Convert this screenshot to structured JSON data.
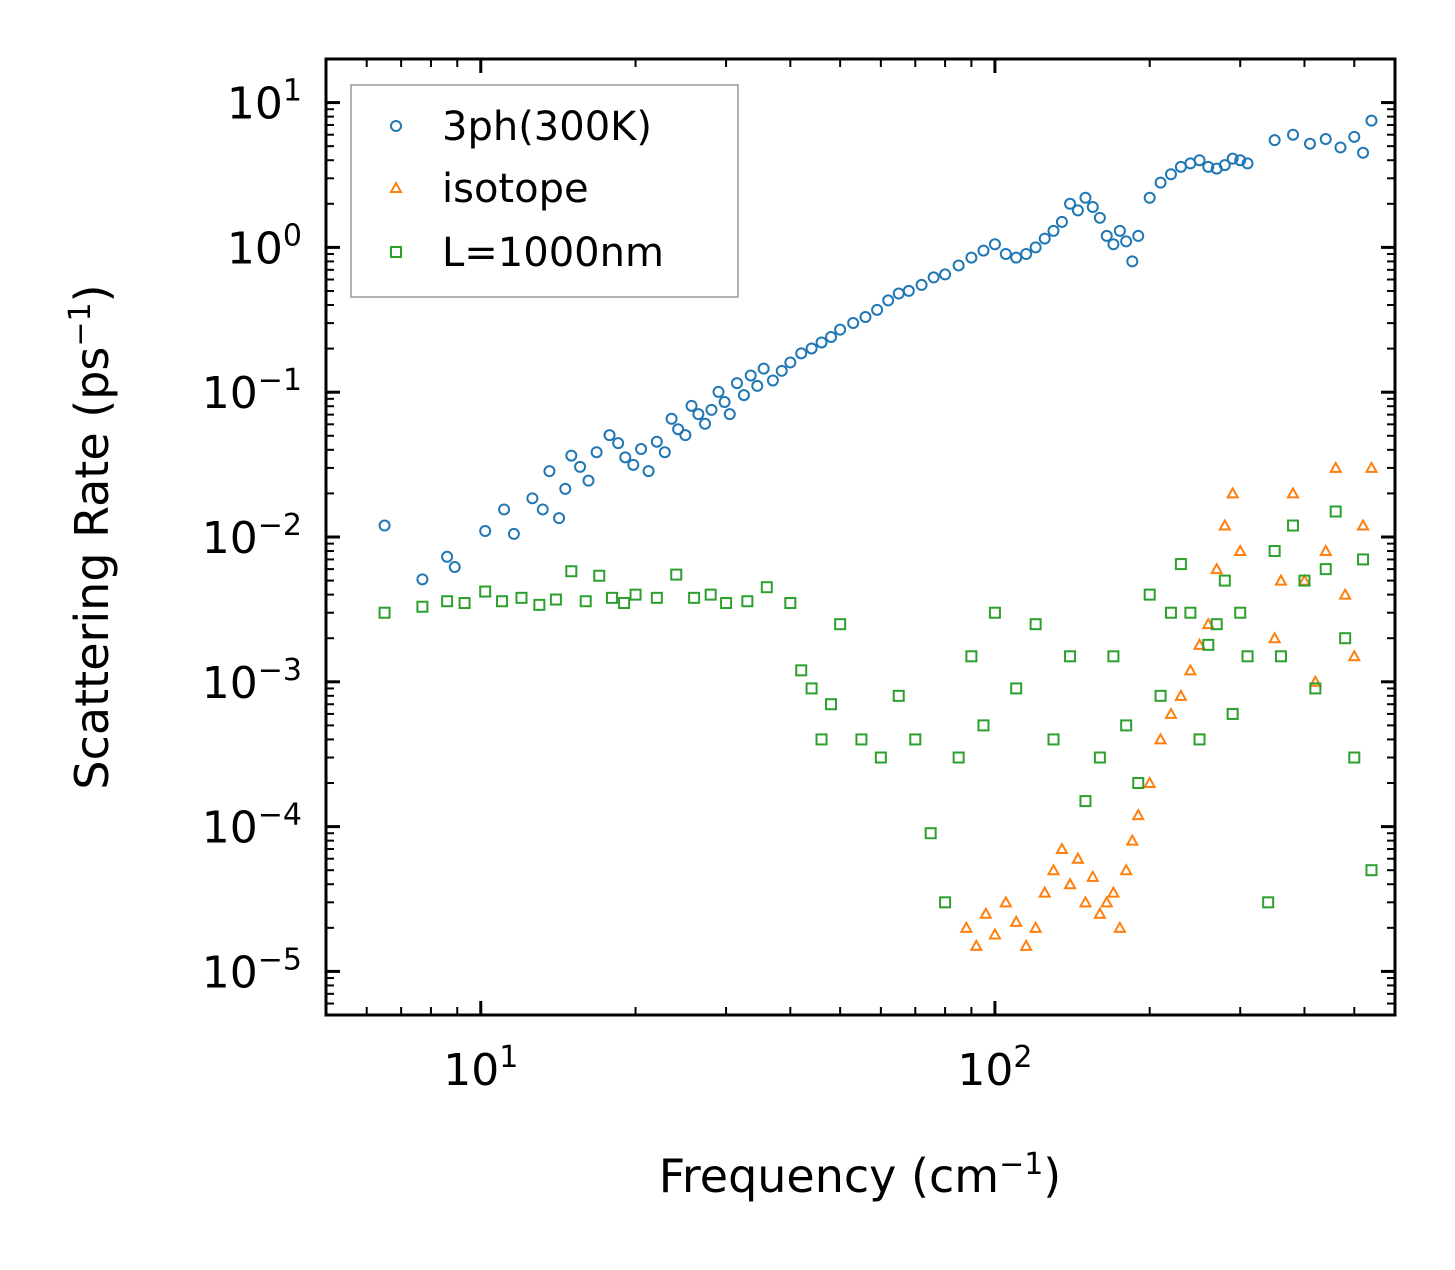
{
  "chart_data": {
    "type": "scatter",
    "xscale": "log",
    "yscale": "log",
    "xlim": [
      5,
      600
    ],
    "ylim": [
      5e-06,
      20
    ],
    "xlabel": {
      "text": "Frequency (cm",
      "sup": "−1",
      "close": ")"
    },
    "ylabel": {
      "text": "Scattering Rate (ps",
      "sup": "−1",
      "close": ")"
    },
    "x_ticks": [
      {
        "value": 10,
        "base": "10",
        "exp": "1"
      },
      {
        "value": 100,
        "base": "10",
        "exp": "2"
      }
    ],
    "y_ticks": [
      {
        "value": 10,
        "base": "10",
        "exp": "1"
      },
      {
        "value": 1,
        "base": "10",
        "exp": "0"
      },
      {
        "value": 0.1,
        "base": "10",
        "exp": "−1"
      },
      {
        "value": 0.01,
        "base": "10",
        "exp": "−2"
      },
      {
        "value": 0.001,
        "base": "10",
        "exp": "−3"
      },
      {
        "value": 0.0001,
        "base": "10",
        "exp": "−4"
      },
      {
        "value": 1e-05,
        "base": "10",
        "exp": "−5"
      }
    ],
    "legend_position": "upper-left",
    "series": [
      {
        "name": "3ph(300K)",
        "marker": "circle",
        "color": "#1f77b4",
        "points": [
          [
            6.5,
            0.012
          ],
          [
            7.7,
            0.0051
          ],
          [
            8.6,
            0.0073
          ],
          [
            8.9,
            0.0062
          ],
          [
            10.2,
            0.011
          ],
          [
            11.1,
            0.0155
          ],
          [
            11.6,
            0.0105
          ],
          [
            12.6,
            0.0185
          ],
          [
            13.2,
            0.0155
          ],
          [
            13.6,
            0.0285
          ],
          [
            14.2,
            0.0135
          ],
          [
            14.6,
            0.0215
          ],
          [
            15.0,
            0.0365
          ],
          [
            15.6,
            0.0305
          ],
          [
            16.2,
            0.0245
          ],
          [
            16.8,
            0.0385
          ],
          [
            17.8,
            0.0505
          ],
          [
            18.5,
            0.0445
          ],
          [
            19.1,
            0.0355
          ],
          [
            19.8,
            0.0315
          ],
          [
            20.5,
            0.0405
          ],
          [
            21.2,
            0.0285
          ],
          [
            22.0,
            0.0455
          ],
          [
            22.8,
            0.0385
          ],
          [
            23.5,
            0.0655
          ],
          [
            24.2,
            0.0555
          ],
          [
            25.0,
            0.0505
          ],
          [
            25.7,
            0.0805
          ],
          [
            26.5,
            0.0705
          ],
          [
            27.3,
            0.0605
          ],
          [
            28.1,
            0.0755
          ],
          [
            29.0,
            0.1005
          ],
          [
            29.8,
            0.0855
          ],
          [
            30.5,
            0.0705
          ],
          [
            31.5,
            0.1155
          ],
          [
            32.5,
            0.0955
          ],
          [
            33.5,
            0.1305
          ],
          [
            34.5,
            0.1105
          ],
          [
            35.5,
            0.1455
          ],
          [
            37.0,
            0.1205
          ],
          [
            38.5,
            0.1405
          ],
          [
            40.0,
            0.1605
          ],
          [
            42.0,
            0.1855
          ],
          [
            44.0,
            0.2005
          ],
          [
            46.0,
            0.2205
          ],
          [
            48.0,
            0.2405
          ],
          [
            50.0,
            0.2705
          ],
          [
            53.0,
            0.3005
          ],
          [
            56.0,
            0.3305
          ],
          [
            59.0,
            0.3705
          ],
          [
            62.0,
            0.4305
          ],
          [
            65.0,
            0.4805
          ],
          [
            68.0,
            0.5005
          ],
          [
            72.0,
            0.5505
          ],
          [
            76.0,
            0.6205
          ],
          [
            80.0,
            0.6505
          ],
          [
            85.0,
            0.7505
          ],
          [
            90.0,
            0.8505
          ],
          [
            95.0,
            0.9505
          ],
          [
            100.0,
            1.0505
          ],
          [
            105.0,
            0.9005
          ],
          [
            110.0,
            0.8505
          ],
          [
            115.0,
            0.9005
          ],
          [
            120.0,
            1.0005
          ],
          [
            125.0,
            1.1505
          ],
          [
            130.0,
            1.3005
          ],
          [
            135.0,
            1.5005
          ],
          [
            140.0,
            2.0005
          ],
          [
            145.0,
            1.8005
          ],
          [
            150.0,
            2.2005
          ],
          [
            155.0,
            1.9005
          ],
          [
            160.0,
            1.6005
          ],
          [
            165.0,
            1.2005
          ],
          [
            170.0,
            1.0505
          ],
          [
            175.0,
            1.3005
          ],
          [
            180.0,
            1.1005
          ],
          [
            185.0,
            0.8005
          ],
          [
            190.0,
            1.2005
          ],
          [
            200.0,
            2.2005
          ],
          [
            210.0,
            2.8005
          ],
          [
            220.0,
            3.2005
          ],
          [
            230.0,
            3.6005
          ],
          [
            240.0,
            3.8005
          ],
          [
            250.0,
            4.0005
          ],
          [
            260.0,
            3.6005
          ],
          [
            270.0,
            3.5005
          ],
          [
            280.0,
            3.7005
          ],
          [
            290.0,
            4.1005
          ],
          [
            300.0,
            4.0005
          ],
          [
            310.0,
            3.8005
          ],
          [
            350.0,
            5.5005
          ],
          [
            380.0,
            6.0005
          ],
          [
            410.0,
            5.2005
          ],
          [
            440.0,
            5.6005
          ],
          [
            470.0,
            4.9005
          ],
          [
            500.0,
            5.8005
          ],
          [
            520.0,
            4.5005
          ],
          [
            540.0,
            7.5005
          ]
        ]
      },
      {
        "name": "isotope",
        "marker": "triangle",
        "color": "#ff7f0e",
        "points": [
          [
            88,
            2e-05
          ],
          [
            92,
            1.5e-05
          ],
          [
            96,
            2.5e-05
          ],
          [
            100,
            1.8e-05
          ],
          [
            105,
            3e-05
          ],
          [
            110,
            2.2e-05
          ],
          [
            115,
            1.5e-05
          ],
          [
            120,
            2e-05
          ],
          [
            125,
            3.5e-05
          ],
          [
            130,
            5e-05
          ],
          [
            135,
            7e-05
          ],
          [
            140,
            4e-05
          ],
          [
            145,
            6e-05
          ],
          [
            150,
            3e-05
          ],
          [
            155,
            4.5e-05
          ],
          [
            160,
            2.5e-05
          ],
          [
            165,
            3e-05
          ],
          [
            170,
            3.5e-05
          ],
          [
            175,
            2e-05
          ],
          [
            180,
            5e-05
          ],
          [
            185,
            8e-05
          ],
          [
            190,
            0.00012
          ],
          [
            200,
            0.0002
          ],
          [
            210,
            0.0004
          ],
          [
            220,
            0.0006
          ],
          [
            230,
            0.0008
          ],
          [
            240,
            0.0012
          ],
          [
            250,
            0.0018
          ],
          [
            260,
            0.0025
          ],
          [
            270,
            0.006
          ],
          [
            280,
            0.012
          ],
          [
            290,
            0.02
          ],
          [
            300,
            0.008
          ],
          [
            350,
            0.002
          ],
          [
            360,
            0.005
          ],
          [
            380,
            0.02
          ],
          [
            400,
            0.005
          ],
          [
            420,
            0.001
          ],
          [
            440,
            0.008
          ],
          [
            460,
            0.03
          ],
          [
            480,
            0.004
          ],
          [
            500,
            0.0015
          ],
          [
            520,
            0.012
          ],
          [
            540,
            0.03
          ]
        ]
      },
      {
        "name": "L=1000nm",
        "marker": "square",
        "color": "#2ca02c",
        "points": [
          [
            6.5,
            0.003
          ],
          [
            7.7,
            0.0033
          ],
          [
            8.6,
            0.0036
          ],
          [
            9.3,
            0.0035
          ],
          [
            10.2,
            0.0042
          ],
          [
            11.0,
            0.0036
          ],
          [
            12.0,
            0.0038
          ],
          [
            13.0,
            0.0034
          ],
          [
            14.0,
            0.0037
          ],
          [
            15.0,
            0.0058
          ],
          [
            16.0,
            0.0036
          ],
          [
            17.0,
            0.0054
          ],
          [
            18.0,
            0.0038
          ],
          [
            19.0,
            0.0035
          ],
          [
            20.0,
            0.004
          ],
          [
            22.0,
            0.0038
          ],
          [
            24.0,
            0.0055
          ],
          [
            26.0,
            0.0038
          ],
          [
            28.0,
            0.004
          ],
          [
            30.0,
            0.0035
          ],
          [
            33.0,
            0.0036
          ],
          [
            36.0,
            0.0045
          ],
          [
            40.0,
            0.0035
          ],
          [
            42.0,
            0.0012
          ],
          [
            44.0,
            0.0009
          ],
          [
            46.0,
            0.0004
          ],
          [
            48.0,
            0.0007
          ],
          [
            50.0,
            0.0025
          ],
          [
            55.0,
            0.0004
          ],
          [
            60.0,
            0.0003
          ],
          [
            65.0,
            0.0008
          ],
          [
            70.0,
            0.0004
          ],
          [
            75.0,
            9e-05
          ],
          [
            80.0,
            3e-05
          ],
          [
            85.0,
            0.0003
          ],
          [
            90.0,
            0.0015
          ],
          [
            95.0,
            0.0005
          ],
          [
            100.0,
            0.003
          ],
          [
            110.0,
            0.0009
          ],
          [
            120.0,
            0.0025
          ],
          [
            130.0,
            0.0004
          ],
          [
            140.0,
            0.0015
          ],
          [
            150.0,
            0.00015
          ],
          [
            160.0,
            0.0003
          ],
          [
            170.0,
            0.0015
          ],
          [
            180.0,
            0.0005
          ],
          [
            190.0,
            0.0002
          ],
          [
            200.0,
            0.004
          ],
          [
            210.0,
            0.0008
          ],
          [
            220.0,
            0.003
          ],
          [
            230.0,
            0.0065
          ],
          [
            240.0,
            0.003
          ],
          [
            250.0,
            0.0004
          ],
          [
            260.0,
            0.0018
          ],
          [
            270.0,
            0.0025
          ],
          [
            280.0,
            0.005
          ],
          [
            290.0,
            0.0006
          ],
          [
            300.0,
            0.003
          ],
          [
            310.0,
            0.0015
          ],
          [
            340.0,
            3e-05
          ],
          [
            350.0,
            0.008
          ],
          [
            360.0,
            0.0015
          ],
          [
            380.0,
            0.012
          ],
          [
            400.0,
            0.005
          ],
          [
            420.0,
            0.0009
          ],
          [
            440.0,
            0.006
          ],
          [
            460.0,
            0.015
          ],
          [
            480.0,
            0.002
          ],
          [
            500.0,
            0.0003
          ],
          [
            520.0,
            0.007
          ],
          [
            540.0,
            5e-05
          ]
        ]
      }
    ]
  }
}
